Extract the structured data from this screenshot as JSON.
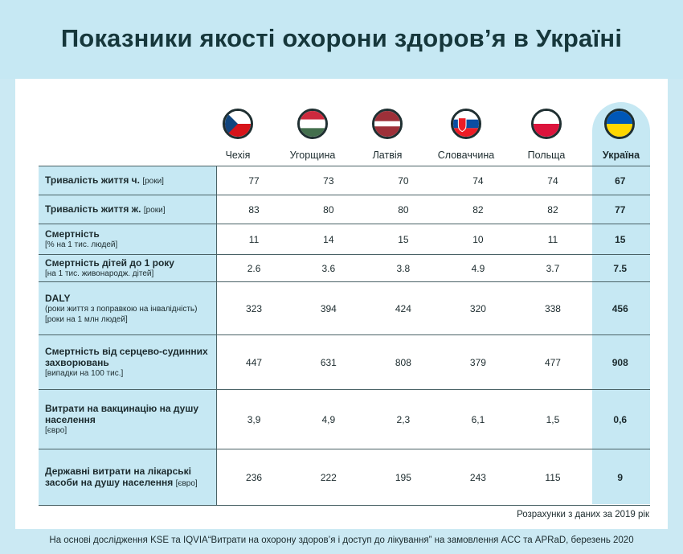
{
  "title": "Показники якості охорони здоров’я в Україні",
  "countries": [
    {
      "name": "Чехія",
      "flag": "czech-flag-icon"
    },
    {
      "name": "Угорщина",
      "flag": "hungary-flag-icon"
    },
    {
      "name": "Латвія",
      "flag": "latvia-flag-icon"
    },
    {
      "name": "Словаччина",
      "flag": "slovakia-flag-icon"
    },
    {
      "name": "Польща",
      "flag": "poland-flag-icon"
    },
    {
      "name": "Україна",
      "flag": "ukraine-flag-icon"
    }
  ],
  "rows": [
    {
      "label": "Тривалість життя ч.",
      "unit_inline": "[роки]",
      "values": [
        "77",
        "73",
        "70",
        "74",
        "74",
        "67"
      ]
    },
    {
      "label": "Тривалість життя ж.",
      "unit_inline": "[роки]",
      "values": [
        "83",
        "80",
        "80",
        "82",
        "82",
        "77"
      ]
    },
    {
      "label": "Смертність",
      "unit": "[% на 1 тис. людей]",
      "values": [
        "11",
        "14",
        "15",
        "10",
        "11",
        "15"
      ]
    },
    {
      "label": "Смертність дітей до 1 року",
      "unit": "[на 1 тис. живонародж. дітей]",
      "values": [
        "2.6",
        "3.6",
        "3.8",
        "4.9",
        "3.7",
        "7.5"
      ]
    },
    {
      "label": "DALY",
      "unit": "(роки життя з поправкою на інвалідність) [роки на 1 млн людей]",
      "values": [
        "323",
        "394",
        "424",
        "320",
        "338",
        "456"
      ]
    },
    {
      "label": "Смертність від серцево-судинних захворювань",
      "unit": "[випадки на 100 тис.]",
      "values": [
        "447",
        "631",
        "808",
        "379",
        "477",
        "908"
      ]
    },
    {
      "label": "Витрати на вакцинацію на душу населення",
      "unit": "[євро]",
      "values": [
        "3,9",
        "4,9",
        "2,3",
        "6,1",
        "1,5",
        "0,6"
      ]
    },
    {
      "label": "Державні витрати на лікарські засоби на душу населення",
      "unit_inline": "[євро]",
      "values": [
        "236",
        "222",
        "195",
        "243",
        "115",
        "9"
      ]
    }
  ],
  "note": "Розрахунки з даних за 2019 рік",
  "footer": "На основі дослідження KSE та IQVIA“Витрати на охорону здоров’я і доступ до лікування” на замовлення ACC та APRaD, березень 2020",
  "colors": {
    "accent_band": "#c6e8f3",
    "title": "#16373b"
  }
}
